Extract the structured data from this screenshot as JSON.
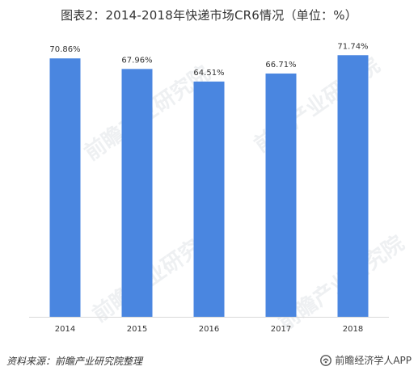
{
  "title": "图表2：2014-2018年快递市场CR6情况（单位：%）",
  "footer": {
    "source": "资料来源：前瞻产业研究院整理",
    "brand": "前瞻经济学人APP"
  },
  "watermark": "前瞻产业研究院",
  "colors": {
    "bar": "#4a86e0",
    "label": "#333333",
    "axis": "#d9d9d9"
  },
  "chart_data": {
    "type": "bar",
    "title": "图表2：2014-2018年快递市场CR6情况（单位：%）",
    "categories": [
      "2014",
      "2015",
      "2016",
      "2017",
      "2018"
    ],
    "values": [
      70.86,
      67.96,
      64.51,
      66.71,
      71.74
    ],
    "value_labels": [
      "70.86%",
      "67.96%",
      "64.51%",
      "66.71%",
      "71.74%"
    ],
    "xlabel": "",
    "ylabel": "",
    "ylim": [
      0,
      80
    ],
    "grid": false,
    "legend": "none"
  }
}
